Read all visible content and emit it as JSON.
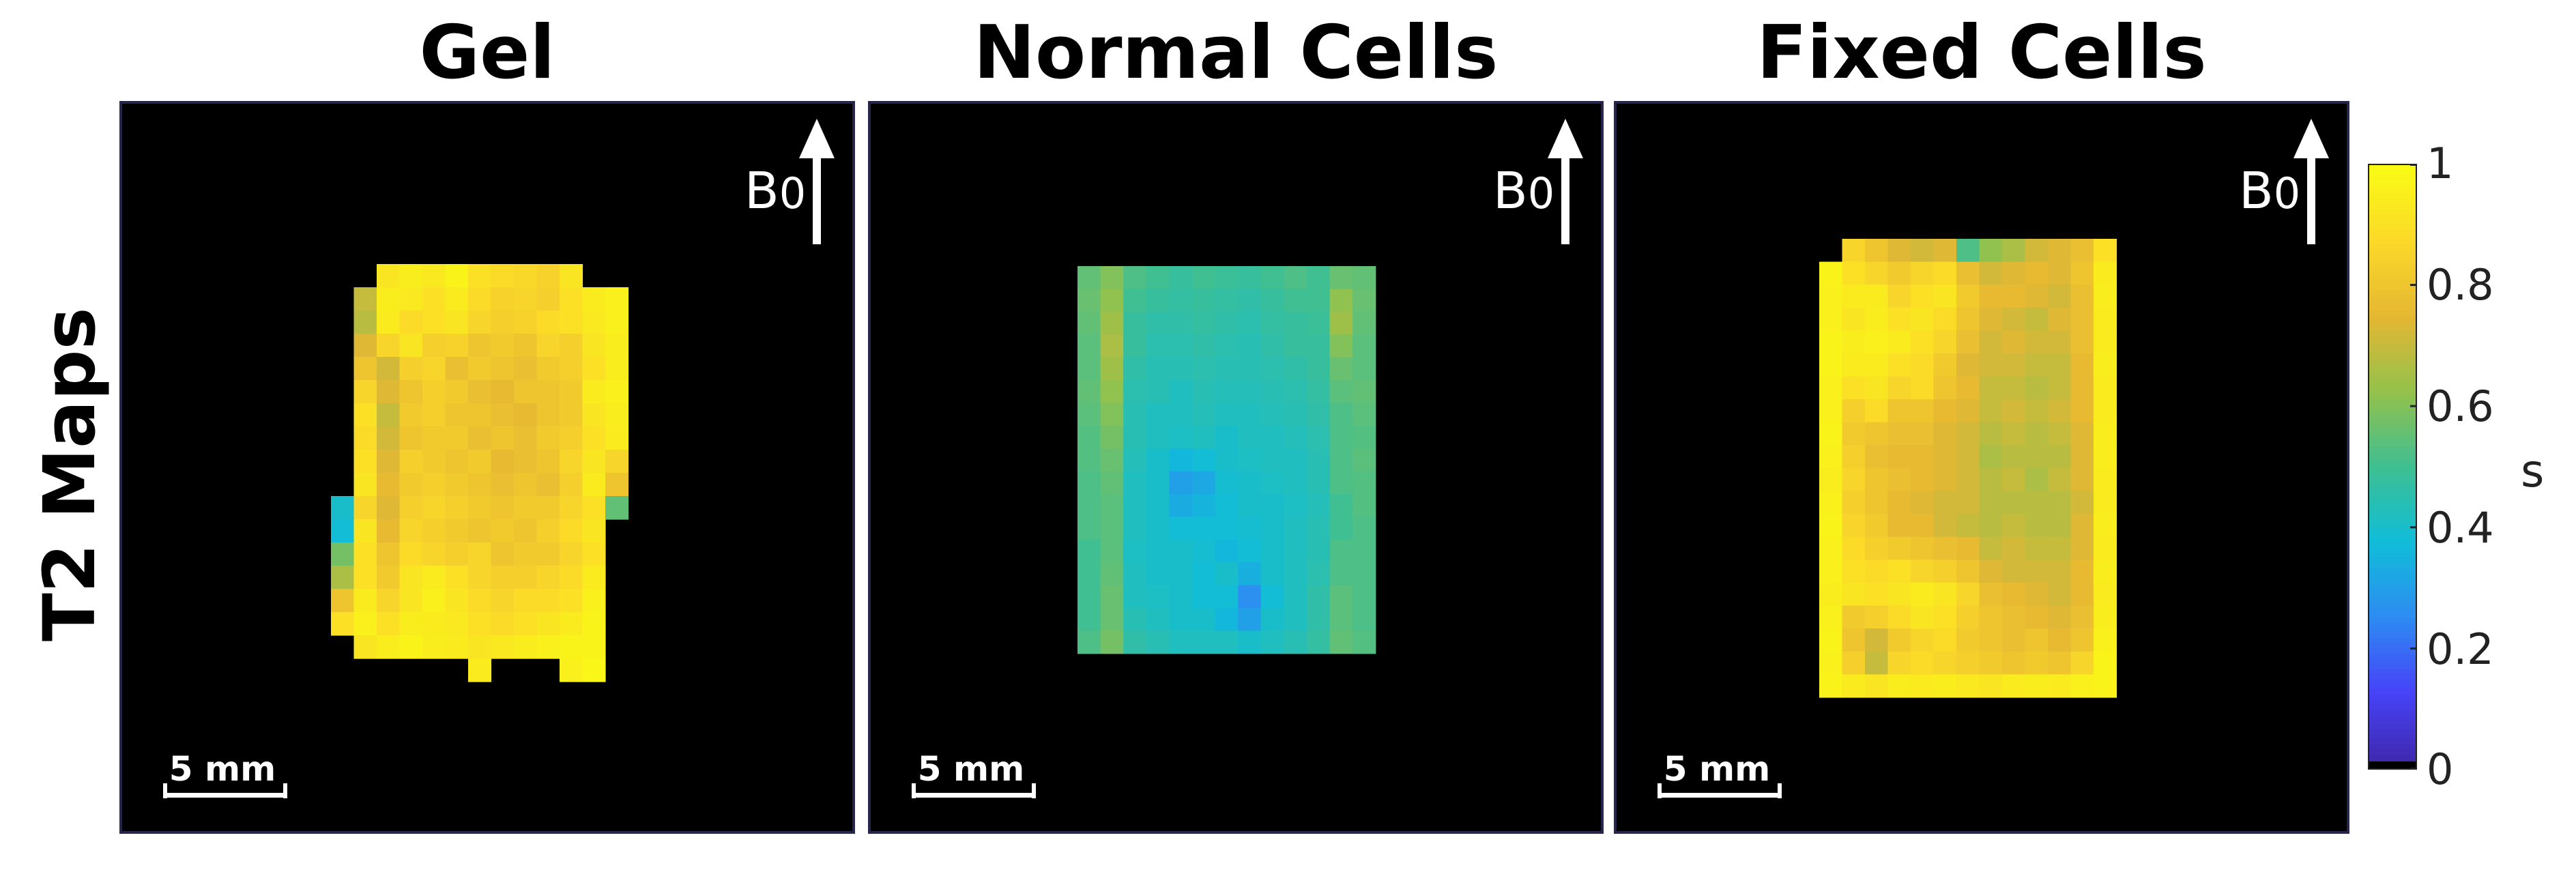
{
  "figure": {
    "row_label": "T2 Maps",
    "arrow_label": "B",
    "arrow_subscript": "0",
    "scale_label": "5 mm"
  },
  "colorbar": {
    "unit": "s",
    "ticks": [
      "0",
      "0.2",
      "0.4",
      "0.6",
      "0.8",
      "1"
    ],
    "range": [
      0,
      1
    ],
    "colormap": "parula",
    "colors": [
      "#3e26a8",
      "#4743f8",
      "#2d8cf2",
      "#10bdd8",
      "#3fbf92",
      "#94c14c",
      "#e5b733",
      "#fbd929",
      "#f9fb15"
    ]
  },
  "chart_data": {
    "type": "heatmap",
    "value_units": "s",
    "value_range": [
      0,
      1
    ],
    "panels": [
      {
        "title": "Gel",
        "note": "pixel grid approx 13 columns x 18 rows; NaN = background",
        "values": [
          [
            null,
            null,
            0.92,
            0.95,
            0.93,
            0.97,
            0.9,
            0.88,
            0.87,
            0.85,
            0.92,
            null,
            null
          ],
          [
            null,
            0.7,
            0.95,
            0.93,
            0.9,
            0.94,
            0.88,
            0.85,
            0.86,
            0.84,
            0.9,
            0.94,
            0.96
          ],
          [
            null,
            0.68,
            0.94,
            0.88,
            0.9,
            0.92,
            0.86,
            0.84,
            0.85,
            0.88,
            0.9,
            0.93,
            0.96
          ],
          [
            null,
            0.74,
            0.86,
            0.92,
            0.84,
            0.85,
            0.8,
            0.82,
            0.8,
            0.86,
            0.84,
            0.92,
            0.95
          ],
          [
            null,
            0.8,
            0.72,
            0.84,
            0.86,
            0.78,
            0.82,
            0.8,
            0.78,
            0.82,
            0.84,
            0.9,
            0.95
          ],
          [
            null,
            0.86,
            0.74,
            0.8,
            0.84,
            0.82,
            0.78,
            0.76,
            0.8,
            0.8,
            0.82,
            0.94,
            0.96
          ],
          [
            null,
            0.9,
            0.7,
            0.82,
            0.84,
            0.8,
            0.8,
            0.78,
            0.76,
            0.8,
            0.82,
            0.92,
            0.95
          ],
          [
            null,
            0.88,
            0.72,
            0.8,
            0.82,
            0.82,
            0.78,
            0.8,
            0.78,
            0.82,
            0.84,
            0.9,
            0.94
          ],
          [
            null,
            0.9,
            0.74,
            0.84,
            0.82,
            0.8,
            0.82,
            0.76,
            0.78,
            0.8,
            0.86,
            0.92,
            0.86
          ],
          [
            null,
            0.92,
            0.76,
            0.82,
            0.84,
            0.82,
            0.8,
            0.78,
            0.8,
            0.78,
            0.84,
            0.94,
            0.8
          ],
          [
            0.4,
            0.86,
            0.74,
            0.84,
            0.86,
            0.84,
            0.82,
            0.8,
            0.82,
            0.82,
            0.86,
            0.9,
            0.55
          ],
          [
            0.38,
            0.92,
            0.76,
            0.86,
            0.84,
            0.82,
            0.8,
            0.82,
            0.8,
            0.84,
            0.88,
            0.92,
            null
          ],
          [
            0.58,
            0.9,
            0.8,
            0.88,
            0.86,
            0.84,
            0.86,
            0.8,
            0.82,
            0.82,
            0.86,
            0.9,
            null
          ],
          [
            0.66,
            0.9,
            0.82,
            0.92,
            0.94,
            0.9,
            0.86,
            0.84,
            0.84,
            0.86,
            0.88,
            0.94,
            null
          ],
          [
            0.8,
            0.94,
            0.86,
            0.92,
            0.96,
            0.92,
            0.88,
            0.86,
            0.88,
            0.88,
            0.9,
            0.96,
            null
          ],
          [
            0.9,
            0.96,
            0.9,
            0.95,
            0.94,
            0.93,
            0.9,
            0.88,
            0.9,
            0.92,
            0.94,
            0.97,
            null
          ],
          [
            null,
            0.92,
            0.95,
            0.97,
            0.95,
            0.94,
            0.92,
            0.93,
            0.95,
            0.96,
            0.97,
            0.97,
            null
          ],
          [
            null,
            null,
            null,
            null,
            null,
            null,
            0.94,
            null,
            null,
            null,
            0.96,
            0.98,
            null
          ]
        ]
      },
      {
        "title": "Normal Cells",
        "note": "pixel grid approx 13 columns x 17 rows",
        "values": [
          [
            0.55,
            0.6,
            0.52,
            0.5,
            0.48,
            0.5,
            0.49,
            0.48,
            0.5,
            0.52,
            0.5,
            0.56,
            0.55
          ],
          [
            0.56,
            0.62,
            0.5,
            0.48,
            0.47,
            0.48,
            0.47,
            0.46,
            0.48,
            0.5,
            0.5,
            0.62,
            0.56
          ],
          [
            0.55,
            0.64,
            0.48,
            0.46,
            0.46,
            0.47,
            0.46,
            0.45,
            0.47,
            0.48,
            0.49,
            0.64,
            0.55
          ],
          [
            0.54,
            0.66,
            0.48,
            0.45,
            0.45,
            0.46,
            0.45,
            0.44,
            0.46,
            0.48,
            0.48,
            0.6,
            0.54
          ],
          [
            0.54,
            0.64,
            0.46,
            0.44,
            0.44,
            0.45,
            0.44,
            0.44,
            0.45,
            0.46,
            0.48,
            0.56,
            0.54
          ],
          [
            0.55,
            0.62,
            0.45,
            0.44,
            0.42,
            0.44,
            0.43,
            0.43,
            0.44,
            0.45,
            0.47,
            0.54,
            0.55
          ],
          [
            0.54,
            0.6,
            0.44,
            0.42,
            0.42,
            0.43,
            0.42,
            0.42,
            0.43,
            0.44,
            0.46,
            0.52,
            0.54
          ],
          [
            0.53,
            0.58,
            0.44,
            0.42,
            0.41,
            0.42,
            0.4,
            0.42,
            0.42,
            0.43,
            0.45,
            0.52,
            0.53
          ],
          [
            0.53,
            0.56,
            0.43,
            0.4,
            0.36,
            0.38,
            0.4,
            0.41,
            0.42,
            0.42,
            0.44,
            0.52,
            0.54
          ],
          [
            0.52,
            0.55,
            0.42,
            0.4,
            0.3,
            0.32,
            0.39,
            0.4,
            0.41,
            0.42,
            0.44,
            0.52,
            0.53
          ],
          [
            0.52,
            0.54,
            0.42,
            0.4,
            0.33,
            0.35,
            0.38,
            0.4,
            0.4,
            0.41,
            0.43,
            0.5,
            0.53
          ],
          [
            0.52,
            0.54,
            0.42,
            0.4,
            0.38,
            0.38,
            0.38,
            0.39,
            0.4,
            0.42,
            0.44,
            0.5,
            0.52
          ],
          [
            0.5,
            0.54,
            0.41,
            0.4,
            0.4,
            0.39,
            0.36,
            0.38,
            0.4,
            0.42,
            0.44,
            0.52,
            0.52
          ],
          [
            0.5,
            0.55,
            0.42,
            0.4,
            0.4,
            0.38,
            0.4,
            0.34,
            0.4,
            0.42,
            0.45,
            0.52,
            0.52
          ],
          [
            0.5,
            0.56,
            0.42,
            0.41,
            0.4,
            0.38,
            0.38,
            0.26,
            0.38,
            0.42,
            0.46,
            0.54,
            0.52
          ],
          [
            0.5,
            0.56,
            0.44,
            0.42,
            0.4,
            0.4,
            0.36,
            0.3,
            0.4,
            0.42,
            0.46,
            0.54,
            0.52
          ],
          [
            0.52,
            0.58,
            0.46,
            0.44,
            0.42,
            0.42,
            0.42,
            0.4,
            0.42,
            0.44,
            0.47,
            0.55,
            0.53
          ]
        ]
      },
      {
        "title": "Fixed Cells",
        "note": "pixel grid approx 13 columns x 20 rows",
        "values": [
          [
            null,
            0.86,
            0.8,
            0.74,
            0.72,
            0.74,
            0.52,
            0.62,
            0.66,
            0.72,
            0.74,
            0.78,
            0.9
          ],
          [
            0.97,
            0.9,
            0.86,
            0.82,
            0.86,
            0.88,
            0.78,
            0.72,
            0.74,
            0.76,
            0.74,
            0.8,
            0.94
          ],
          [
            0.96,
            0.94,
            0.94,
            0.86,
            0.9,
            0.92,
            0.82,
            0.76,
            0.76,
            0.74,
            0.72,
            0.78,
            0.95
          ],
          [
            0.96,
            0.92,
            0.95,
            0.9,
            0.92,
            0.88,
            0.8,
            0.74,
            0.72,
            0.7,
            0.74,
            0.78,
            0.94
          ],
          [
            0.97,
            0.95,
            0.96,
            0.94,
            0.9,
            0.86,
            0.78,
            0.72,
            0.74,
            0.72,
            0.72,
            0.78,
            0.94
          ],
          [
            0.97,
            0.94,
            0.94,
            0.9,
            0.88,
            0.82,
            0.74,
            0.72,
            0.72,
            0.7,
            0.7,
            0.76,
            0.95
          ],
          [
            0.96,
            0.9,
            0.92,
            0.86,
            0.88,
            0.8,
            0.76,
            0.7,
            0.7,
            0.68,
            0.7,
            0.76,
            0.94
          ],
          [
            0.96,
            0.84,
            0.88,
            0.8,
            0.8,
            0.76,
            0.74,
            0.7,
            0.72,
            0.7,
            0.72,
            0.76,
            0.94
          ],
          [
            0.97,
            0.82,
            0.8,
            0.78,
            0.78,
            0.74,
            0.72,
            0.68,
            0.7,
            0.68,
            0.7,
            0.74,
            0.95
          ],
          [
            0.96,
            0.84,
            0.78,
            0.76,
            0.76,
            0.74,
            0.72,
            0.66,
            0.68,
            0.68,
            0.68,
            0.74,
            0.95
          ],
          [
            0.95,
            0.86,
            0.8,
            0.78,
            0.76,
            0.74,
            0.72,
            0.68,
            0.7,
            0.66,
            0.7,
            0.74,
            0.94
          ],
          [
            0.96,
            0.84,
            0.8,
            0.76,
            0.74,
            0.72,
            0.72,
            0.68,
            0.68,
            0.68,
            0.68,
            0.72,
            0.94
          ],
          [
            0.97,
            0.86,
            0.82,
            0.76,
            0.76,
            0.72,
            0.7,
            0.68,
            0.7,
            0.68,
            0.68,
            0.74,
            0.95
          ],
          [
            0.96,
            0.88,
            0.84,
            0.82,
            0.8,
            0.78,
            0.76,
            0.7,
            0.72,
            0.7,
            0.7,
            0.74,
            0.94
          ],
          [
            0.96,
            0.9,
            0.88,
            0.9,
            0.86,
            0.84,
            0.8,
            0.74,
            0.72,
            0.72,
            0.72,
            0.76,
            0.95
          ],
          [
            0.95,
            0.92,
            0.9,
            0.92,
            0.94,
            0.92,
            0.86,
            0.78,
            0.76,
            0.74,
            0.72,
            0.76,
            0.94
          ],
          [
            0.96,
            0.82,
            0.84,
            0.88,
            0.92,
            0.9,
            0.84,
            0.8,
            0.78,
            0.76,
            0.74,
            0.78,
            0.95
          ],
          [
            0.97,
            0.8,
            0.72,
            0.82,
            0.86,
            0.88,
            0.82,
            0.8,
            0.78,
            0.8,
            0.76,
            0.8,
            0.96
          ],
          [
            0.96,
            0.84,
            0.7,
            0.86,
            0.88,
            0.86,
            0.84,
            0.82,
            0.8,
            0.82,
            0.8,
            0.86,
            0.97
          ],
          [
            0.97,
            0.94,
            0.92,
            0.95,
            0.94,
            0.95,
            0.93,
            0.92,
            0.94,
            0.95,
            0.94,
            0.96,
            0.97
          ]
        ]
      }
    ]
  }
}
